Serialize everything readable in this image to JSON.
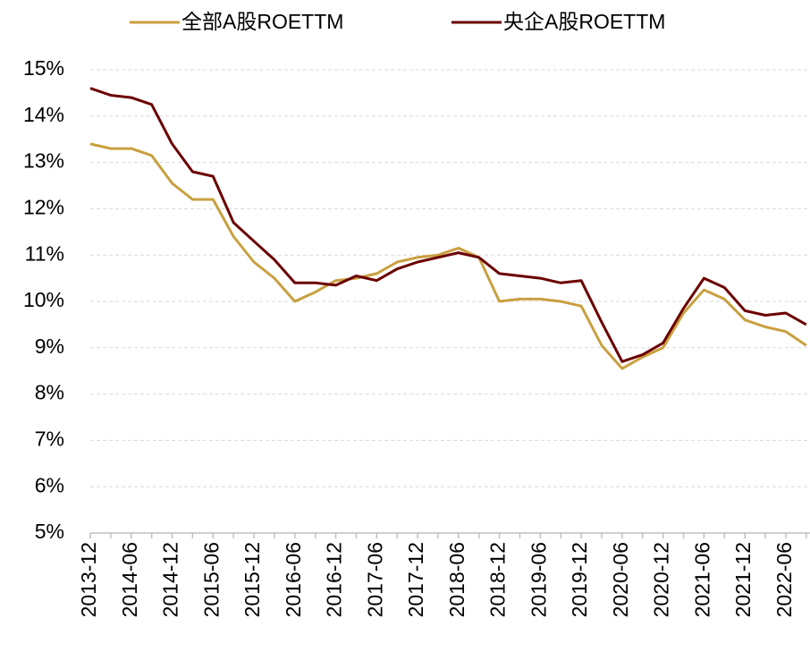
{
  "chart_data": {
    "type": "line",
    "categories": [
      "2013-12",
      null,
      "2014-06",
      null,
      "2014-12",
      null,
      "2015-06",
      null,
      "2015-12",
      null,
      "2016-06",
      null,
      "2016-12",
      null,
      "2017-06",
      null,
      "2017-12",
      null,
      "2018-06",
      null,
      "2018-12",
      null,
      "2019-06",
      null,
      "2019-12",
      null,
      "2020-06",
      null,
      "2020-12",
      null,
      "2021-06",
      null,
      "2021-12",
      null,
      "2022-06",
      null
    ],
    "series": [
      {
        "name": "全部A股ROETTM",
        "color": "#c9a040",
        "values": [
          13.4,
          13.3,
          13.3,
          13.15,
          12.55,
          12.2,
          12.2,
          11.4,
          10.85,
          10.5,
          10.0,
          10.2,
          10.45,
          10.5,
          10.6,
          10.85,
          10.95,
          11.0,
          11.15,
          10.95,
          10.0,
          10.05,
          10.05,
          10.0,
          9.9,
          9.05,
          8.55,
          8.8,
          9.0,
          9.75,
          10.25,
          10.05,
          9.6,
          9.45,
          9.35,
          9.05
        ]
      },
      {
        "name": "央企A股ROETTM",
        "color": "#6b0000",
        "values": [
          14.6,
          14.45,
          14.4,
          14.25,
          13.4,
          12.8,
          12.7,
          11.7,
          11.3,
          10.9,
          10.4,
          10.4,
          10.35,
          10.55,
          10.45,
          10.7,
          10.85,
          10.95,
          11.05,
          10.95,
          10.6,
          10.55,
          10.5,
          10.4,
          10.45,
          9.55,
          8.7,
          8.85,
          9.1,
          9.85,
          10.5,
          10.3,
          9.8,
          9.7,
          9.75,
          9.5
        ]
      }
    ],
    "ylim": [
      5,
      15
    ],
    "yticks": [
      {
        "value": 5,
        "label": "5%"
      },
      {
        "value": 6,
        "label": "6%"
      },
      {
        "value": 7,
        "label": "7%"
      },
      {
        "value": 8,
        "label": "8%"
      },
      {
        "value": 9,
        "label": "9%"
      },
      {
        "value": 10,
        "label": "10%"
      },
      {
        "value": 11,
        "label": "11%"
      },
      {
        "value": 12,
        "label": "12%"
      },
      {
        "value": 13,
        "label": "13%"
      },
      {
        "value": 14,
        "label": "14%"
      },
      {
        "value": 15,
        "label": "15%"
      }
    ],
    "grid": true,
    "legend": "top"
  }
}
